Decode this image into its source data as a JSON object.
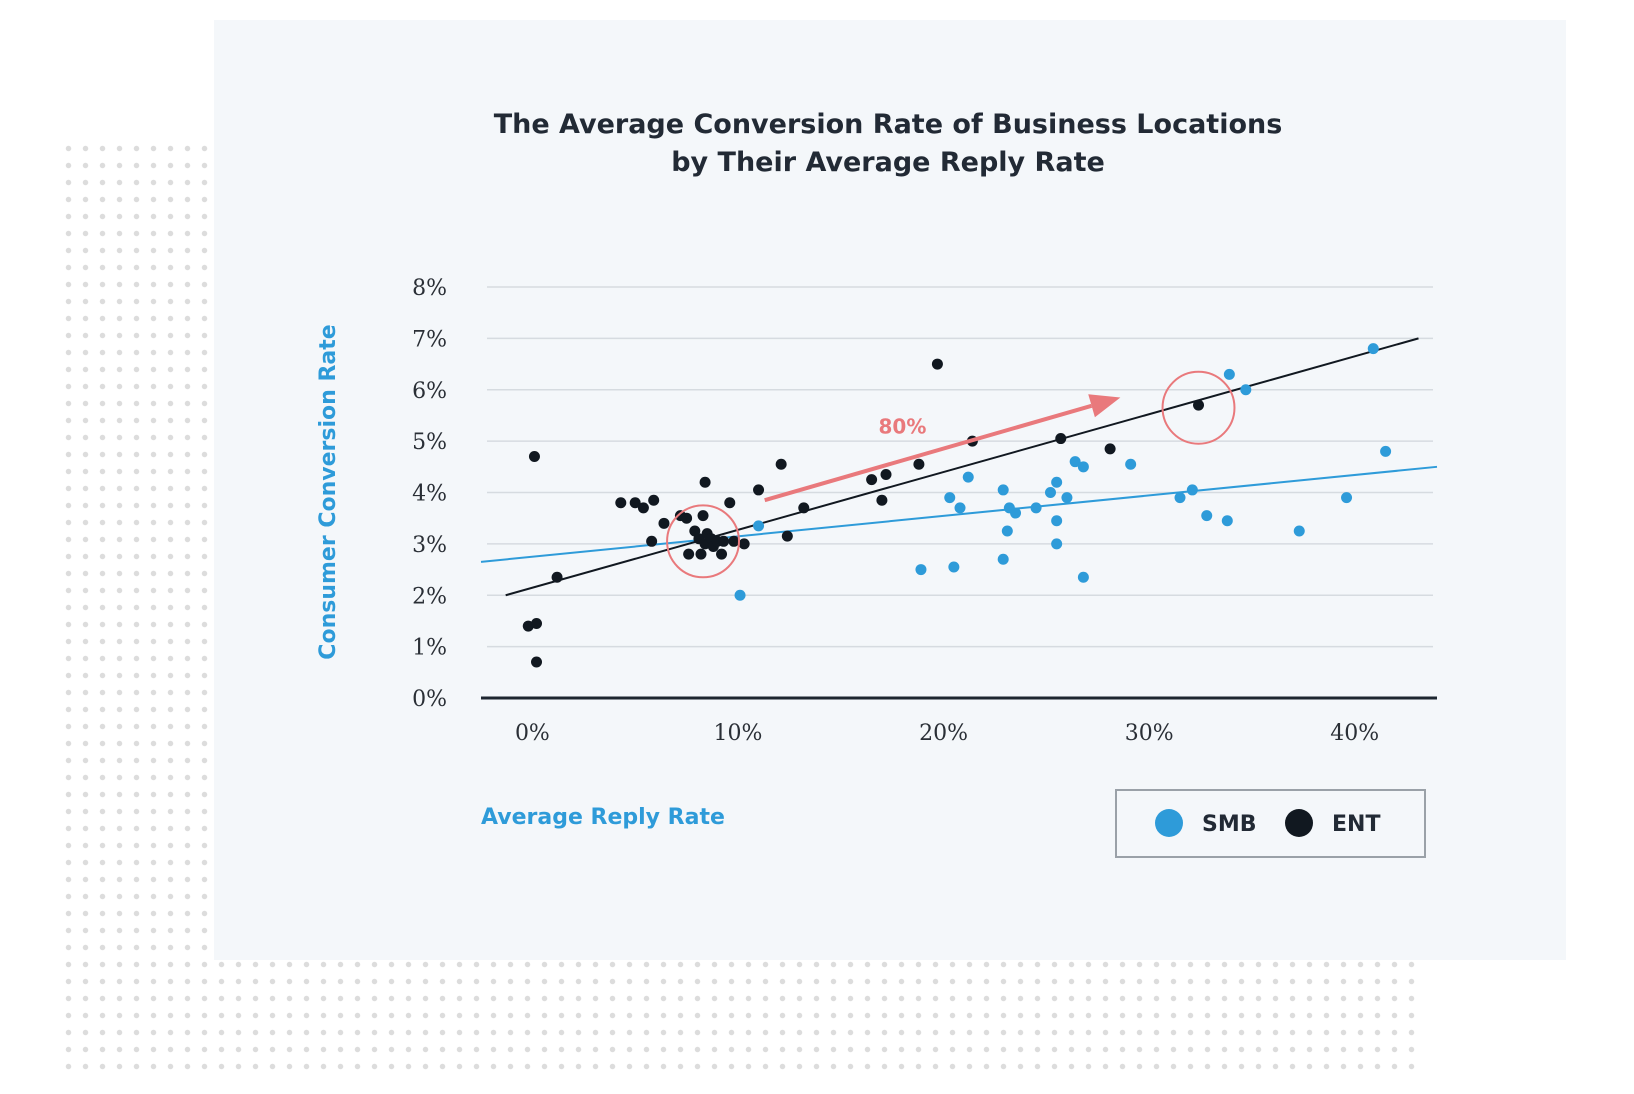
{
  "chart_data": {
    "type": "scatter",
    "title_lines": [
      "The Average Conversion Rate of Business Locations",
      "by Their Average Reply Rate"
    ],
    "xlabel": "Average Reply Rate",
    "ylabel": "Consumer Conversion Rate",
    "xlim": [
      -2.5,
      44
    ],
    "ylim": [
      0,
      8
    ],
    "x_ticks": [
      {
        "value": 0,
        "label": "0%"
      },
      {
        "value": 10,
        "label": "10%"
      },
      {
        "value": 20,
        "label": "20%"
      },
      {
        "value": 30,
        "label": "30%"
      },
      {
        "value": 40,
        "label": "40%"
      }
    ],
    "y_ticks": [
      {
        "value": 0,
        "label": "0%"
      },
      {
        "value": 1,
        "label": "1%"
      },
      {
        "value": 2,
        "label": "2%"
      },
      {
        "value": 3,
        "label": "3%"
      },
      {
        "value": 4,
        "label": "4%"
      },
      {
        "value": 5,
        "label": "5%"
      },
      {
        "value": 6,
        "label": "6%"
      },
      {
        "value": 7,
        "label": "7%"
      },
      {
        "value": 8,
        "label": "8%"
      }
    ],
    "grid": true,
    "legend_position": "bottom-right",
    "series": [
      {
        "name": "SMB",
        "color": "#2e9bd9",
        "points": [
          [
            10.1,
            2.0
          ],
          [
            11.0,
            3.35
          ],
          [
            18.9,
            2.5
          ],
          [
            20.3,
            3.9
          ],
          [
            20.8,
            3.7
          ],
          [
            21.2,
            4.3
          ],
          [
            20.5,
            2.55
          ],
          [
            22.9,
            2.7
          ],
          [
            23.1,
            3.25
          ],
          [
            22.9,
            4.05
          ],
          [
            23.2,
            3.7
          ],
          [
            23.5,
            3.6
          ],
          [
            24.5,
            3.7
          ],
          [
            25.2,
            4.0
          ],
          [
            25.5,
            4.2
          ],
          [
            25.5,
            3.45
          ],
          [
            25.5,
            3.0
          ],
          [
            26.0,
            3.9
          ],
          [
            26.4,
            4.6
          ],
          [
            26.8,
            4.5
          ],
          [
            26.8,
            2.35
          ],
          [
            29.1,
            4.55
          ],
          [
            31.5,
            3.9
          ],
          [
            32.1,
            4.05
          ],
          [
            32.8,
            3.55
          ],
          [
            33.8,
            3.45
          ],
          [
            33.9,
            6.3
          ],
          [
            34.7,
            6.0
          ],
          [
            37.3,
            3.25
          ],
          [
            39.6,
            3.9
          ],
          [
            40.9,
            6.8
          ],
          [
            41.5,
            4.8
          ]
        ]
      },
      {
        "name": "ENT",
        "color": "#111820",
        "points": [
          [
            0.1,
            4.7
          ],
          [
            -0.2,
            1.4
          ],
          [
            0.2,
            1.45
          ],
          [
            0.2,
            0.7
          ],
          [
            1.2,
            2.35
          ],
          [
            4.3,
            3.8
          ],
          [
            5.0,
            3.8
          ],
          [
            5.4,
            3.7
          ],
          [
            5.8,
            3.05
          ],
          [
            5.9,
            3.85
          ],
          [
            6.4,
            3.4
          ],
          [
            7.2,
            3.55
          ],
          [
            7.5,
            3.5
          ],
          [
            7.6,
            2.8
          ],
          [
            7.9,
            3.25
          ],
          [
            8.1,
            3.1
          ],
          [
            8.2,
            2.8
          ],
          [
            8.3,
            3.55
          ],
          [
            8.4,
            3.0
          ],
          [
            8.5,
            3.2
          ],
          [
            8.7,
            3.1
          ],
          [
            8.8,
            2.95
          ],
          [
            9.0,
            3.05
          ],
          [
            9.2,
            2.8
          ],
          [
            9.3,
            3.05
          ],
          [
            9.6,
            3.8
          ],
          [
            9.8,
            3.05
          ],
          [
            10.3,
            3.0
          ],
          [
            8.4,
            4.2
          ],
          [
            11.0,
            4.05
          ],
          [
            12.1,
            4.55
          ],
          [
            12.4,
            3.15
          ],
          [
            13.2,
            3.7
          ],
          [
            16.5,
            4.25
          ],
          [
            17.2,
            4.35
          ],
          [
            17.0,
            3.85
          ],
          [
            18.8,
            4.55
          ],
          [
            19.7,
            6.5
          ],
          [
            21.4,
            5.0
          ],
          [
            25.7,
            5.05
          ],
          [
            28.1,
            4.85
          ],
          [
            32.4,
            5.7
          ]
        ]
      }
    ],
    "trendlines": [
      {
        "series": "SMB",
        "from": [
          -2.5,
          2.65
        ],
        "to": [
          44,
          4.5
        ],
        "color": "#2e9bd9"
      },
      {
        "series": "ENT",
        "from": [
          -1.3,
          2.0
        ],
        "to": [
          43.1,
          7.0
        ],
        "color": "#111820"
      }
    ],
    "annotations": {
      "arrow": {
        "label": "80%",
        "from": [
          11.3,
          3.85
        ],
        "to": [
          28.6,
          5.85
        ],
        "label_at": [
          18.0,
          5.15
        ],
        "color": "#e9797c"
      },
      "circles": [
        {
          "center": [
            8.3,
            3.05
          ],
          "radius_y": 0.7,
          "color": "#e9797c"
        },
        {
          "center": [
            32.4,
            5.65
          ],
          "radius_y": 0.7,
          "color": "#e9797c"
        }
      ]
    },
    "legend": [
      {
        "label": "SMB",
        "color": "#2e9bd9"
      },
      {
        "label": "ENT",
        "color": "#111820"
      }
    ]
  }
}
